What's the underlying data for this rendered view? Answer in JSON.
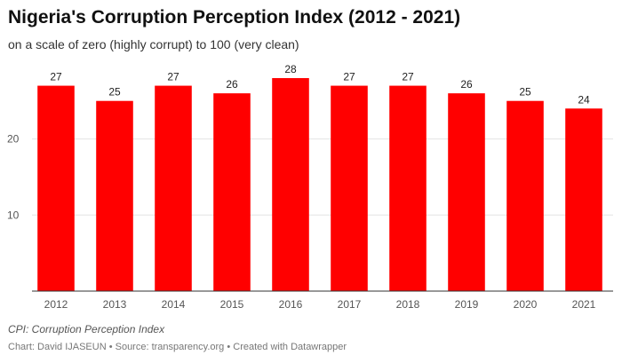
{
  "title": "Nigeria's Corruption Perception Index (2012 - 2021)",
  "subtitle": "on a scale of zero (highly corrupt) to 100 (very clean)",
  "notes": "CPI: Corruption Perception Index",
  "credits": "Chart: David IJASEUN • Source: transparency.org • Created with Datawrapper",
  "colors": {
    "bar": "#ff0000"
  },
  "chart_data": {
    "type": "bar",
    "title": "Nigeria's Corruption Perception Index (2012 - 2021)",
    "subtitle": "on a scale of zero (highly corrupt) to 100 (very clean)",
    "categories": [
      "2012",
      "2013",
      "2014",
      "2015",
      "2016",
      "2017",
      "2018",
      "2019",
      "2020",
      "2021"
    ],
    "values": [
      27,
      25,
      27,
      26,
      28,
      27,
      27,
      26,
      25,
      24
    ],
    "ylim": [
      0,
      28
    ],
    "yticks": [
      10,
      20
    ],
    "grid": true,
    "data_labels": true
  }
}
